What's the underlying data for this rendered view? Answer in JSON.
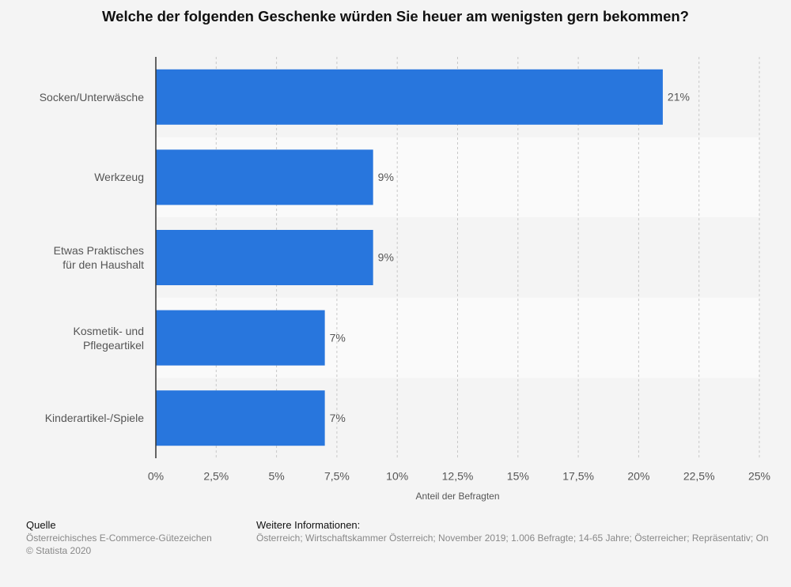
{
  "chart_data": {
    "type": "bar",
    "orientation": "horizontal",
    "title": "Welche der folgenden Geschenke würden Sie heuer am wenigsten gern bekommen?",
    "categories": [
      "Socken/Unterwäsche",
      "Werkzeug",
      "Etwas Praktisches\nfür den Haushalt",
      "Kosmetik- und\nPflegeartikel",
      "Kinderartikel-/Spiele"
    ],
    "values": [
      21,
      9,
      9,
      7,
      7
    ],
    "value_labels": [
      "21%",
      "9%",
      "9%",
      "7%",
      "7%"
    ],
    "color": "#2876dd",
    "xlabel": "Anteil der Befragten",
    "xlim": [
      0,
      25
    ],
    "xticks": [
      {
        "value": 0,
        "label": "0%"
      },
      {
        "value": 2.5,
        "label": "2,5%"
      },
      {
        "value": 5,
        "label": "5%"
      },
      {
        "value": 7.5,
        "label": "7,5%"
      },
      {
        "value": 10,
        "label": "10%"
      },
      {
        "value": 12.5,
        "label": "12,5%"
      },
      {
        "value": 15,
        "label": "15%"
      },
      {
        "value": 17.5,
        "label": "17,5%"
      },
      {
        "value": 20,
        "label": "20%"
      },
      {
        "value": 22.5,
        "label": "22,5%"
      },
      {
        "value": 25,
        "label": "25%"
      }
    ],
    "grid": true
  },
  "footer": {
    "source_heading": "Quelle",
    "source": "Österreichisches E-Commerce-Gütezeichen",
    "copyright": "© Statista 2020",
    "info_heading": "Weitere Informationen:",
    "info": "Österreich; Wirtschaftskammer Österreich; November 2019; 1.006 Befragte; 14-65 Jahre; Österreicher; Repräsentativ; On"
  }
}
